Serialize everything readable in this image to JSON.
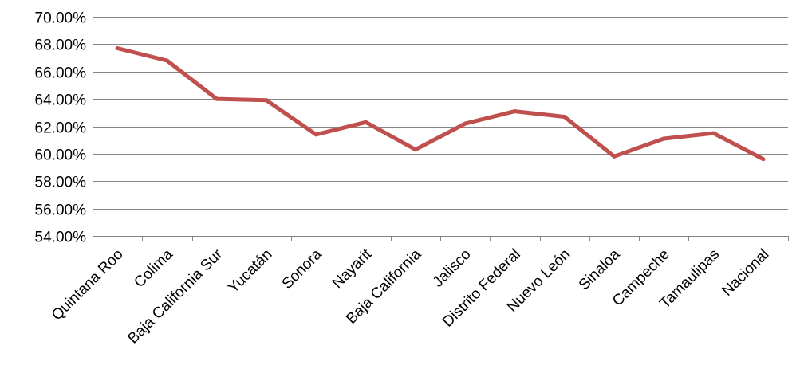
{
  "chart_data": {
    "type": "line",
    "title": "",
    "xlabel": "",
    "ylabel": "",
    "categories": [
      "Quintana Roo",
      "Colima",
      "Baja California Sur",
      "Yucatán",
      "Sonora",
      "Nayarit",
      "Baja California",
      "Jalisco",
      "Distrito Federal",
      "Nuevo León",
      "Sinaloa",
      "Campeche",
      "Tamaulipas",
      "Nacional"
    ],
    "series": [
      {
        "values": [
          67.7,
          66.8,
          64.0,
          63.9,
          61.4,
          62.3,
          60.3,
          62.2,
          63.1,
          62.7,
          59.8,
          61.1,
          61.5,
          59.6
        ],
        "color": "#c0504d"
      }
    ],
    "ylim": [
      54,
      70
    ],
    "yticks": [
      "54.00%",
      "56.00%",
      "58.00%",
      "60.00%",
      "62.00%",
      "64.00%",
      "66.00%",
      "68.00%",
      "70.00%"
    ],
    "grid": "horizontal",
    "legend": "none"
  }
}
